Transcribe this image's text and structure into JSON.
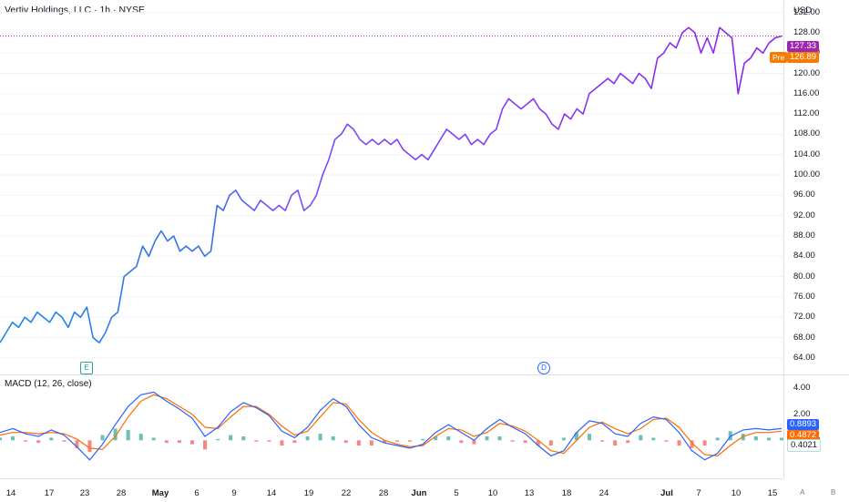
{
  "header": {
    "title": "Vertiv Holdings, LLC · 1h · NYSE",
    "currency": "USD"
  },
  "price_axis": {
    "ticks": [
      "132.00",
      "128.00",
      "124.00",
      "120.00",
      "116.00",
      "112.00",
      "108.00",
      "104.00",
      "100.00",
      "96.00",
      "92.00",
      "88.00",
      "84.00",
      "80.00",
      "76.00",
      "72.00",
      "68.00",
      "64.00"
    ]
  },
  "last_price": {
    "label": "127.33",
    "color": "#9c27b0"
  },
  "pre_market": {
    "tag": "Pre",
    "label": "126.89",
    "color": "#f57c00"
  },
  "macd": {
    "title": "MACD (12, 26, close)",
    "ticks": [
      "4.00",
      "2.00",
      "0.0000"
    ],
    "macd_value": "0.8893",
    "signal_value": "0.4872",
    "hist_value": "0.4021",
    "macd_color": "#2962ff",
    "signal_color": "#ff6d00",
    "hist_pos_color": "#26a69a",
    "hist_neg_color": "#ef5350"
  },
  "time_axis": {
    "labels": [
      "14",
      "17",
      "23",
      "28",
      "May",
      "6",
      "9",
      "14",
      "19",
      "22",
      "28",
      "Jun",
      "5",
      "10",
      "13",
      "18",
      "24",
      "Jul",
      "7",
      "10",
      "15"
    ]
  },
  "events": {
    "earnings": "E",
    "dividend": "D"
  },
  "corner": {
    "auto": "A",
    "log": "B"
  },
  "chart_data": {
    "type": "line",
    "title": "Vertiv Holdings, LLC · 1h · NYSE",
    "ylim": [
      62,
      133
    ],
    "y_unit": "USD",
    "series": [
      {
        "values": [
          67,
          69,
          71,
          70,
          72,
          71,
          73,
          72,
          71,
          73,
          72,
          70,
          73,
          72,
          74,
          68,
          67,
          69,
          72,
          73,
          80,
          81,
          82,
          86,
          84,
          87,
          89,
          87,
          88,
          85,
          86,
          85,
          86,
          84,
          85,
          94,
          93,
          96,
          97,
          95,
          94,
          93,
          95,
          94,
          93,
          94,
          93,
          96,
          97,
          93,
          94,
          96,
          100,
          103,
          107,
          108,
          110,
          109,
          107,
          106,
          107,
          106,
          107,
          106,
          107,
          105,
          104,
          103,
          104,
          103,
          105,
          107,
          109,
          108,
          107,
          108,
          106,
          107,
          106,
          108,
          109,
          113,
          115,
          114,
          113,
          114,
          115,
          113,
          112,
          110,
          109,
          112,
          111,
          113,
          112,
          116,
          117,
          118,
          119,
          118,
          120,
          119,
          118,
          120,
          119,
          117,
          123,
          124,
          126,
          125,
          128,
          129,
          128,
          124,
          127,
          124,
          129,
          128,
          127,
          116,
          122,
          123,
          125,
          124,
          126,
          127,
          127.33
        ]
      }
    ],
    "macd": {
      "ylim": [
        -2.5,
        4.5
      ],
      "macd_line": [
        0.6,
        0.9,
        0.5,
        0.3,
        0.8,
        0.4,
        -0.5,
        -1.5,
        -0.3,
        1.2,
        2.6,
        3.5,
        3.7,
        3.0,
        2.4,
        1.7,
        0.3,
        1.0,
        2.2,
        2.9,
        2.5,
        1.9,
        0.7,
        0.2,
        1.0,
        2.3,
        3.2,
        2.6,
        1.2,
        0.2,
        -0.2,
        -0.4,
        -0.6,
        -0.3,
        0.6,
        1.2,
        0.6,
        0.0,
        0.9,
        1.6,
        1.0,
        0.5,
        -0.4,
        -1.2,
        -0.8,
        0.6,
        1.5,
        1.3,
        0.5,
        0.3,
        1.3,
        1.8,
        1.6,
        0.6,
        -0.8,
        -1.5,
        -1.0,
        0.3,
        0.8,
        0.9,
        0.8,
        0.9
      ],
      "signal_line": [
        0.4,
        0.6,
        0.6,
        0.5,
        0.6,
        0.5,
        0.1,
        -0.6,
        -0.7,
        0.3,
        1.8,
        3.0,
        3.5,
        3.2,
        2.6,
        2.0,
        1.0,
        0.9,
        1.8,
        2.6,
        2.6,
        2.0,
        1.1,
        0.4,
        0.7,
        1.8,
        2.9,
        2.8,
        1.6,
        0.6,
        0.0,
        -0.3,
        -0.5,
        -0.4,
        0.3,
        0.9,
        0.8,
        0.3,
        0.6,
        1.3,
        1.1,
        0.7,
        0.0,
        -0.8,
        -1.0,
        0.0,
        1.0,
        1.4,
        0.9,
        0.5,
        0.9,
        1.6,
        1.7,
        1.0,
        -0.2,
        -1.1,
        -1.2,
        -0.4,
        0.3,
        0.6,
        0.6,
        0.7
      ]
    }
  }
}
